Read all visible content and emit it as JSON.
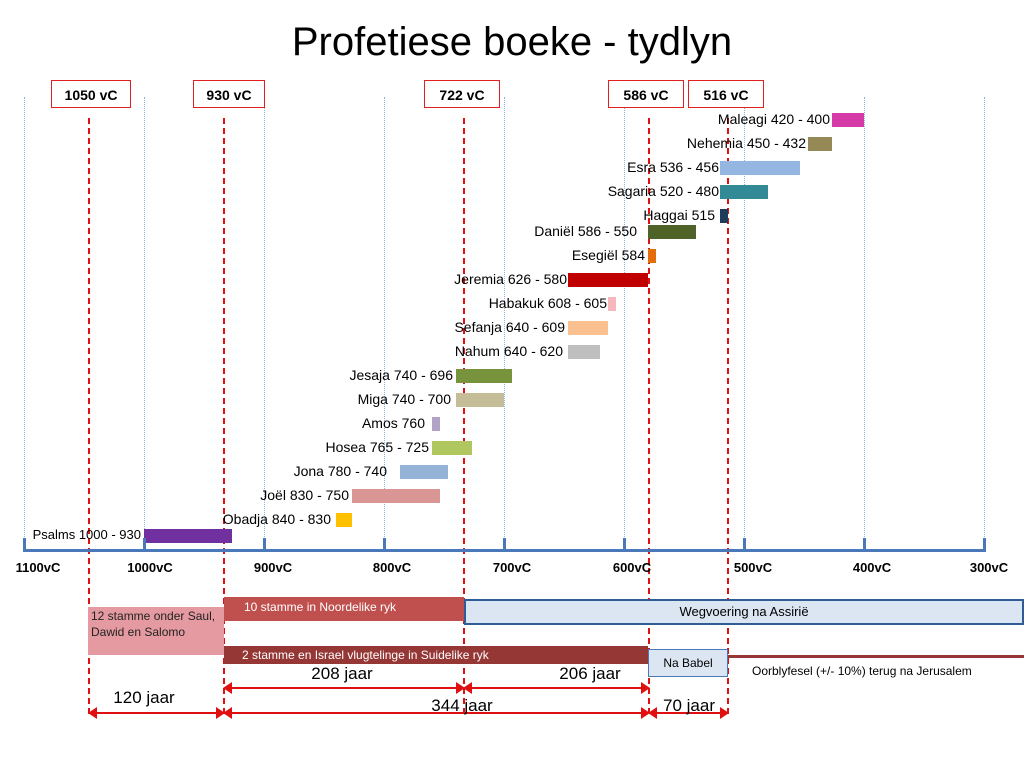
{
  "title": "Profetiese boeke - tydlyn",
  "markers": [
    {
      "label": "1050 vC"
    },
    {
      "label": "930 vC"
    },
    {
      "label": "722 vC"
    },
    {
      "label": "586 vC"
    },
    {
      "label": "516 vC"
    }
  ],
  "axis_labels": [
    "1100vC",
    "1000vC",
    "900vC",
    "800vC",
    "700vC",
    "600vC",
    "500vC",
    "400vC",
    "300vC"
  ],
  "books": [
    {
      "label": "Maleagi 420 - 400",
      "color": "#d63aa8"
    },
    {
      "label": "Nehemia 450 - 432",
      "color": "#958a57"
    },
    {
      "label": "Esra 536 - 456",
      "color": "#94b6e0"
    },
    {
      "label": "Sagaria 520 - 480",
      "color": "#318a96"
    },
    {
      "label": "Haggai 515",
      "color": "#1f3b5c"
    },
    {
      "label": "Daniël 586 - 550",
      "color": "#4f6228"
    },
    {
      "label": "Esegiël 584",
      "color": "#e46c0a"
    },
    {
      "label": "Jeremia 626 - 580",
      "color": "#c00000"
    },
    {
      "label": "Habakuk 608 - 605",
      "color": "#f6b8bc"
    },
    {
      "label": "Sefanja 640 - 609",
      "color": "#fac090"
    },
    {
      "label": "Nahum 640 - 620",
      "color": "#bfbfbf"
    },
    {
      "label": "Jesaja 740 - 696",
      "color": "#77933c"
    },
    {
      "label": "Miga 740 - 700",
      "color": "#c4bd97"
    },
    {
      "label": "Amos 760",
      "color": "#b3a2c7"
    },
    {
      "label": "Hosea 765 - 725",
      "color": "#b0c65e"
    },
    {
      "label": "Jona 780 - 740",
      "color": "#95b3d7"
    },
    {
      "label": "Joël 830 - 750",
      "color": "#d99694"
    },
    {
      "label": "Obadja 840 - 830",
      "color": "#ffc000"
    },
    {
      "label": "Psalms 1000 - 930",
      "color": "#7030a0"
    }
  ],
  "regions": {
    "united": "12 stamme onder Saul, Dawid en Salomo",
    "northern": "10 stamme in Noordelike ryk",
    "assyria": "Wegvoering na Assirië",
    "southern": "2 stamme en Israel vlugtelinge in Suidelike ryk",
    "babylon": "Na Babel",
    "remnant": "Oorblyfesel (+/- 10%) terug na Jerusalem"
  },
  "spans": {
    "s208": "208 jaar",
    "s206": "206 jaar",
    "s120": "120 jaar",
    "s344": "344 jaar",
    "s70": "70 jaar"
  }
}
